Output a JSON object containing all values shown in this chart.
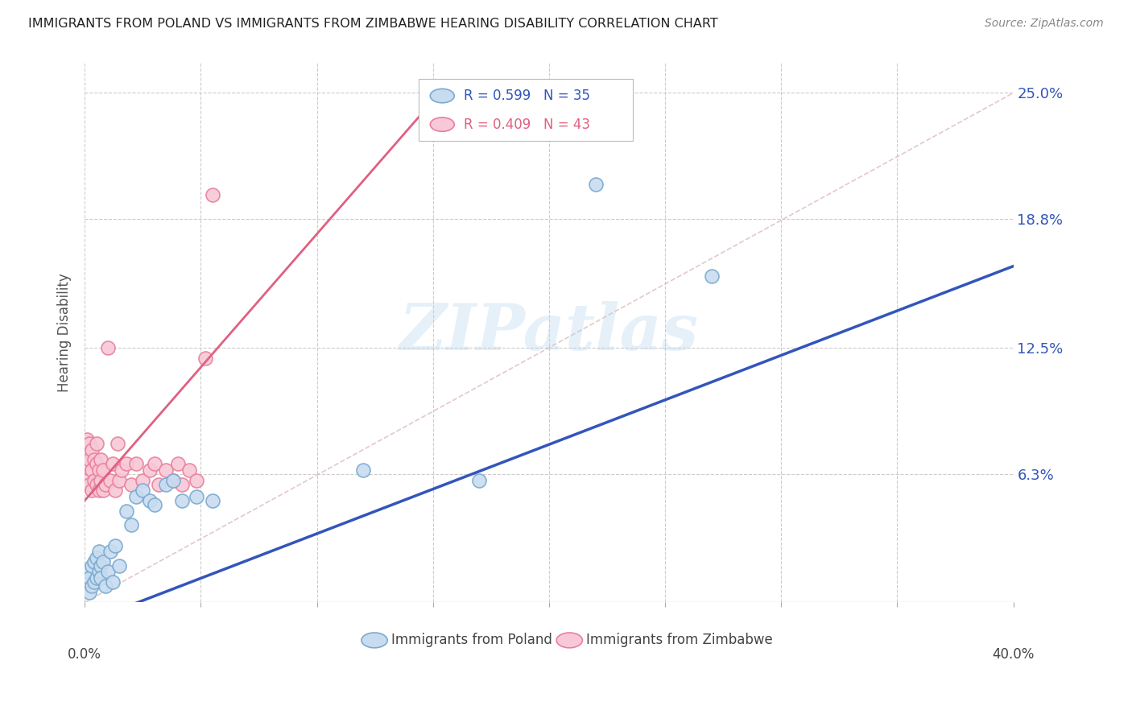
{
  "title": "IMMIGRANTS FROM POLAND VS IMMIGRANTS FROM ZIMBABWE HEARING DISABILITY CORRELATION CHART",
  "source": "Source: ZipAtlas.com",
  "ylabel": "Hearing Disability",
  "yticks": [
    0.0,
    0.063,
    0.125,
    0.188,
    0.25
  ],
  "ytick_labels": [
    "",
    "6.3%",
    "12.5%",
    "18.8%",
    "25.0%"
  ],
  "xlim": [
    0.0,
    0.4
  ],
  "ylim": [
    0.0,
    0.265
  ],
  "poland_R": 0.599,
  "poland_N": 35,
  "zimbabwe_R": 0.409,
  "zimbabwe_N": 43,
  "poland_color": "#c8dcf0",
  "poland_edge_color": "#7aaad0",
  "zimbabwe_color": "#f8c8d8",
  "zimbabwe_edge_color": "#e8809a",
  "poland_line_color": "#3355bb",
  "zimbabwe_line_color": "#e06080",
  "diagonal_color": "#ddbbbb",
  "watermark": "ZIPatlas",
  "poland_x": [
    0.001,
    0.002,
    0.002,
    0.003,
    0.003,
    0.004,
    0.004,
    0.005,
    0.005,
    0.006,
    0.006,
    0.007,
    0.007,
    0.008,
    0.009,
    0.01,
    0.011,
    0.012,
    0.013,
    0.015,
    0.018,
    0.02,
    0.022,
    0.025,
    0.028,
    0.03,
    0.035,
    0.038,
    0.042,
    0.048,
    0.055,
    0.12,
    0.17,
    0.22,
    0.27
  ],
  "poland_y": [
    0.015,
    0.005,
    0.012,
    0.008,
    0.018,
    0.01,
    0.02,
    0.012,
    0.022,
    0.015,
    0.025,
    0.018,
    0.012,
    0.02,
    0.008,
    0.015,
    0.025,
    0.01,
    0.028,
    0.018,
    0.045,
    0.038,
    0.052,
    0.055,
    0.05,
    0.048,
    0.058,
    0.06,
    0.05,
    0.052,
    0.05,
    0.065,
    0.06,
    0.205,
    0.16
  ],
  "zimbabwe_x": [
    0.001,
    0.001,
    0.001,
    0.002,
    0.002,
    0.002,
    0.003,
    0.003,
    0.003,
    0.004,
    0.004,
    0.005,
    0.005,
    0.005,
    0.006,
    0.006,
    0.007,
    0.007,
    0.008,
    0.008,
    0.009,
    0.01,
    0.011,
    0.012,
    0.013,
    0.014,
    0.015,
    0.016,
    0.018,
    0.02,
    0.022,
    0.025,
    0.028,
    0.03,
    0.032,
    0.035,
    0.038,
    0.04,
    0.042,
    0.045,
    0.048,
    0.052,
    0.055
  ],
  "zimbabwe_y": [
    0.06,
    0.068,
    0.08,
    0.058,
    0.07,
    0.078,
    0.055,
    0.065,
    0.075,
    0.06,
    0.07,
    0.058,
    0.068,
    0.078,
    0.055,
    0.065,
    0.06,
    0.07,
    0.055,
    0.065,
    0.058,
    0.125,
    0.06,
    0.068,
    0.055,
    0.078,
    0.06,
    0.065,
    0.068,
    0.058,
    0.068,
    0.06,
    0.065,
    0.068,
    0.058,
    0.065,
    0.06,
    0.068,
    0.058,
    0.065,
    0.06,
    0.12,
    0.2
  ]
}
